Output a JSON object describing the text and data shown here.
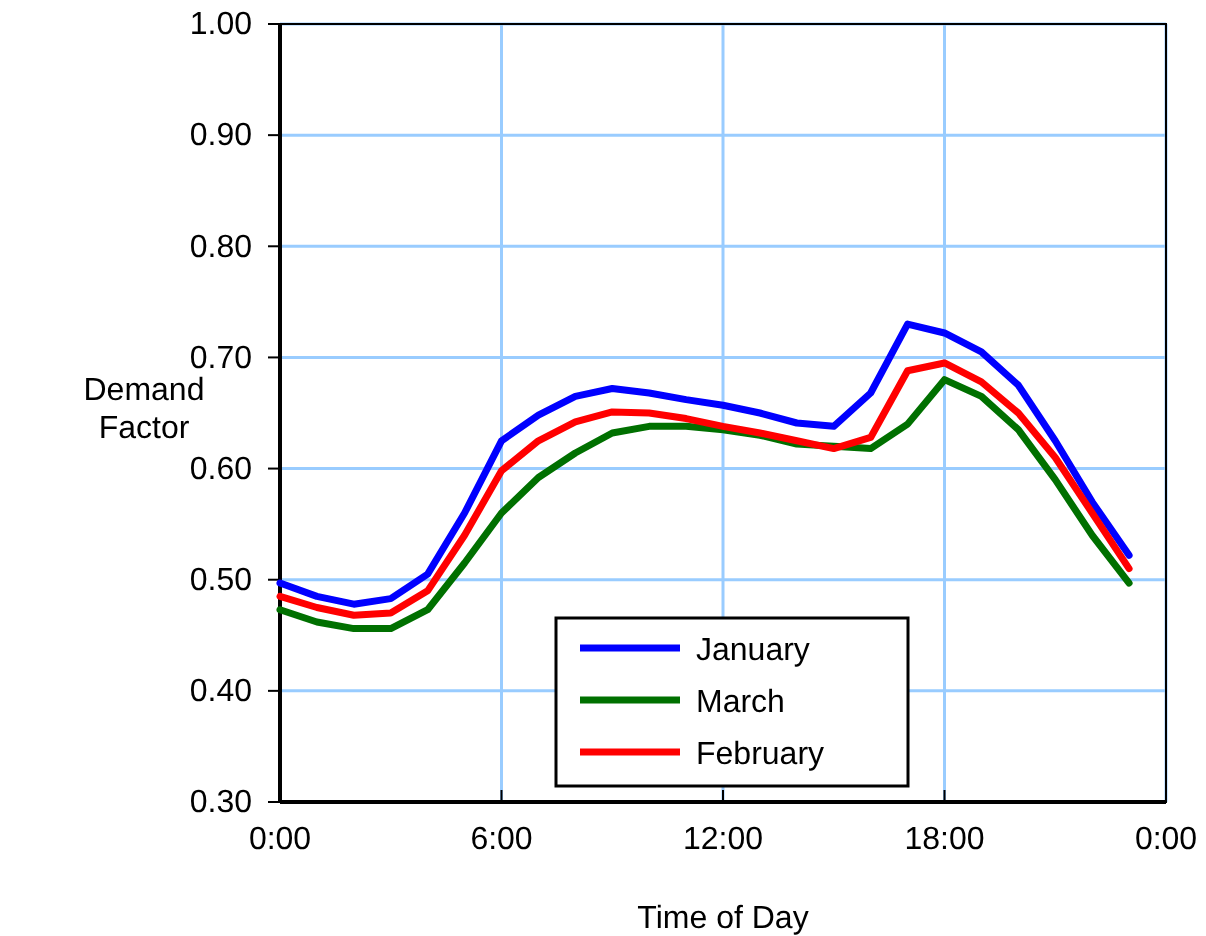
{
  "chart_data": {
    "type": "line",
    "xlabel": "Time of Day",
    "ylabel": "Demand Factor",
    "x": [
      0,
      1,
      2,
      3,
      4,
      5,
      6,
      7,
      8,
      9,
      10,
      11,
      12,
      13,
      14,
      15,
      16,
      17,
      18,
      19,
      20,
      21,
      22,
      23
    ],
    "series": [
      {
        "name": "January",
        "color": "#0000ff",
        "values": [
          0.497,
          0.485,
          0.478,
          0.483,
          0.505,
          0.56,
          0.625,
          0.648,
          0.665,
          0.672,
          0.668,
          0.662,
          0.657,
          0.65,
          0.641,
          0.638,
          0.668,
          0.73,
          0.722,
          0.705,
          0.675,
          0.625,
          0.57,
          0.522
        ]
      },
      {
        "name": "March",
        "color": "#007000",
        "values": [
          0.473,
          0.462,
          0.456,
          0.456,
          0.473,
          0.515,
          0.56,
          0.592,
          0.614,
          0.632,
          0.638,
          0.638,
          0.635,
          0.63,
          0.622,
          0.62,
          0.618,
          0.64,
          0.68,
          0.665,
          0.635,
          0.59,
          0.54,
          0.497
        ]
      },
      {
        "name": "February",
        "color": "#ff0000",
        "values": [
          0.485,
          0.475,
          0.468,
          0.47,
          0.49,
          0.54,
          0.598,
          0.625,
          0.642,
          0.651,
          0.65,
          0.645,
          0.638,
          0.632,
          0.625,
          0.618,
          0.628,
          0.688,
          0.695,
          0.678,
          0.65,
          0.61,
          0.56,
          0.51
        ]
      }
    ],
    "xlim": [
      0,
      24
    ],
    "xticks": [
      {
        "value": 0,
        "label": "0:00"
      },
      {
        "value": 6,
        "label": "6:00"
      },
      {
        "value": 12,
        "label": "12:00"
      },
      {
        "value": 18,
        "label": "18:00"
      },
      {
        "value": 24,
        "label": "0:00"
      }
    ],
    "ylim": [
      0.3,
      1.0
    ],
    "yticks": [
      {
        "value": 0.3,
        "label": "0.30"
      },
      {
        "value": 0.4,
        "label": "0.40"
      },
      {
        "value": 0.5,
        "label": "0.50"
      },
      {
        "value": 0.6,
        "label": "0.60"
      },
      {
        "value": 0.7,
        "label": "0.70"
      },
      {
        "value": 0.8,
        "label": "0.80"
      },
      {
        "value": 0.9,
        "label": "0.90"
      },
      {
        "value": 1.0,
        "label": "1.00"
      }
    ],
    "grid": true,
    "legend": "bottom",
    "marker": "none",
    "line_style": "solid"
  }
}
